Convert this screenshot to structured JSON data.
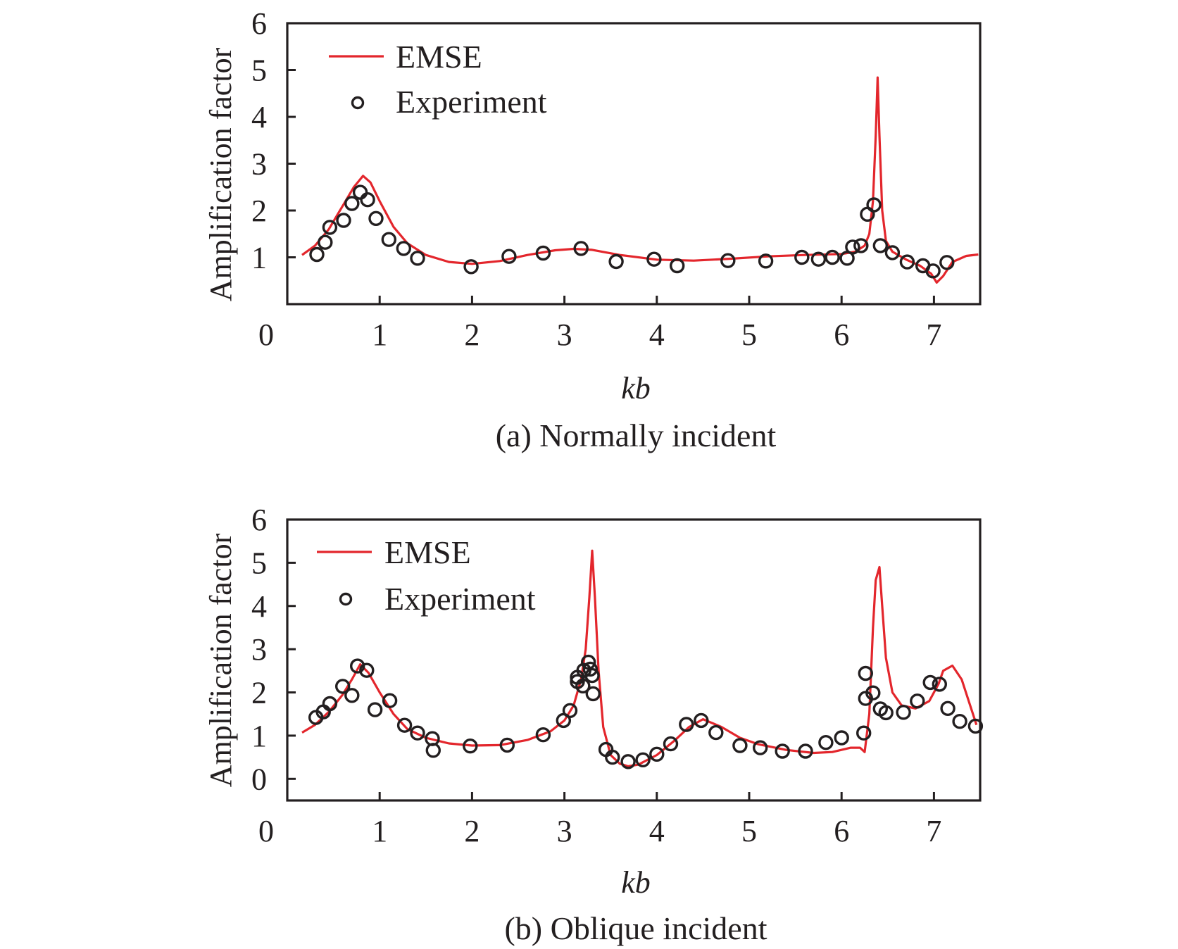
{
  "chart_data": [
    {
      "type": "line",
      "panel": "a",
      "caption": "(a) Normally incident",
      "title": "",
      "xlabel": "kb",
      "ylabel": "Amplification factor",
      "xlim": [
        0,
        7.5
      ],
      "ylim": [
        0,
        6
      ],
      "xticks": [
        0,
        1,
        2,
        3,
        4,
        5,
        6,
        7
      ],
      "yticks": [
        1,
        2,
        3,
        4,
        5,
        6
      ],
      "x_tick_labels": [
        "0",
        "1",
        "2",
        "3",
        "4",
        "5",
        "6",
        "7"
      ],
      "y_tick_labels": [
        "1",
        "2",
        "3",
        "4",
        "5",
        "6"
      ],
      "grid": false,
      "legend": {
        "position": "top-left",
        "entries": [
          "EMSE",
          "Experiment"
        ]
      },
      "series": [
        {
          "name": "EMSE",
          "style": "line",
          "color": "#e3262c",
          "x": [
            0.16,
            0.3,
            0.45,
            0.6,
            0.72,
            0.82,
            0.9,
            1.0,
            1.15,
            1.3,
            1.5,
            1.75,
            2.0,
            2.3,
            2.6,
            2.9,
            3.1,
            3.3,
            3.6,
            4.0,
            4.4,
            4.8,
            5.2,
            5.6,
            6.0,
            6.15,
            6.25,
            6.3,
            6.34,
            6.37,
            6.39,
            6.41,
            6.44,
            6.48,
            6.55,
            6.7,
            6.85,
            6.97,
            7.03,
            7.1,
            7.2,
            7.35,
            7.48
          ],
          "y": [
            1.05,
            1.25,
            1.6,
            2.1,
            2.5,
            2.74,
            2.6,
            2.2,
            1.65,
            1.3,
            1.05,
            0.9,
            0.86,
            0.92,
            1.05,
            1.15,
            1.18,
            1.16,
            1.05,
            0.95,
            0.93,
            0.97,
            1.02,
            1.05,
            1.07,
            1.12,
            1.25,
            1.5,
            2.2,
            3.6,
            4.84,
            3.6,
            2.0,
            1.35,
            1.12,
            0.95,
            0.82,
            0.65,
            0.46,
            0.6,
            0.9,
            1.03,
            1.06
          ]
        },
        {
          "name": "Experiment",
          "style": "scatter",
          "marker": "open-circle",
          "x": [
            0.32,
            0.41,
            0.46,
            0.61,
            0.7,
            0.79,
            0.87,
            0.96,
            1.1,
            1.26,
            1.41,
            1.99,
            2.4,
            2.77,
            3.18,
            3.56,
            3.97,
            4.22,
            4.77,
            5.18,
            5.57,
            5.75,
            5.9,
            6.06,
            6.12,
            6.21,
            6.28,
            6.35,
            6.42,
            6.55,
            6.71,
            6.88,
            6.99,
            7.14
          ],
          "y": [
            1.06,
            1.32,
            1.64,
            1.79,
            2.15,
            2.39,
            2.23,
            1.83,
            1.38,
            1.19,
            0.98,
            0.8,
            1.02,
            1.09,
            1.19,
            0.91,
            0.96,
            0.82,
            0.93,
            0.92,
            1.0,
            0.96,
            1.0,
            0.98,
            1.22,
            1.25,
            1.92,
            2.12,
            1.25,
            1.1,
            0.9,
            0.82,
            0.71,
            0.89
          ]
        }
      ]
    },
    {
      "type": "line",
      "panel": "b",
      "caption": "(b) Oblique incident",
      "title": "",
      "xlabel": "kb",
      "ylabel": "Amplification factor",
      "xlim": [
        0,
        7.5
      ],
      "ylim": [
        -0.5,
        6
      ],
      "xticks": [
        0,
        1,
        2,
        3,
        4,
        5,
        6,
        7
      ],
      "yticks": [
        0,
        1,
        2,
        3,
        4,
        5,
        6
      ],
      "x_tick_labels": [
        "0",
        "1",
        "2",
        "3",
        "4",
        "5",
        "6",
        "7"
      ],
      "y_tick_labels": [
        "0",
        "1",
        "2",
        "3",
        "4",
        "5",
        "6"
      ],
      "grid": false,
      "legend": {
        "position": "top-left",
        "entries": [
          "EMSE",
          "Experiment"
        ]
      },
      "series": [
        {
          "name": "EMSE",
          "style": "line",
          "color": "#e3262c",
          "x": [
            0.16,
            0.3,
            0.45,
            0.6,
            0.7,
            0.79,
            0.88,
            1.0,
            1.15,
            1.3,
            1.5,
            1.75,
            2.0,
            2.3,
            2.6,
            2.85,
            3.0,
            3.1,
            3.18,
            3.23,
            3.27,
            3.3,
            3.33,
            3.37,
            3.42,
            3.5,
            3.6,
            3.69,
            3.8,
            4.0,
            4.2,
            4.35,
            4.5,
            4.7,
            4.9,
            5.1,
            5.4,
            5.7,
            5.9,
            6.1,
            6.2,
            6.25,
            6.3,
            6.34,
            6.37,
            6.41,
            6.44,
            6.48,
            6.55,
            6.65,
            6.8,
            6.95,
            7.05,
            7.1,
            7.2,
            7.3,
            7.46
          ],
          "y": [
            1.07,
            1.25,
            1.55,
            1.95,
            2.3,
            2.65,
            2.45,
            2.0,
            1.5,
            1.15,
            0.95,
            0.82,
            0.77,
            0.78,
            0.9,
            1.1,
            1.35,
            1.7,
            2.3,
            3.0,
            4.2,
            5.28,
            4.2,
            2.5,
            1.2,
            0.55,
            0.35,
            0.29,
            0.33,
            0.55,
            0.9,
            1.2,
            1.38,
            1.2,
            0.95,
            0.8,
            0.67,
            0.6,
            0.62,
            0.72,
            0.72,
            0.62,
            1.5,
            3.5,
            4.6,
            4.9,
            4.0,
            2.8,
            2.0,
            1.7,
            1.63,
            1.8,
            2.2,
            2.5,
            2.62,
            2.3,
            1.25
          ]
        },
        {
          "name": "Experiment",
          "style": "scatter",
          "marker": "open-circle",
          "x": [
            0.31,
            0.39,
            0.46,
            0.6,
            0.7,
            0.76,
            0.86,
            0.95,
            1.11,
            1.27,
            1.41,
            1.57,
            1.58,
            1.98,
            2.38,
            2.77,
            2.99,
            3.06,
            3.14,
            3.14,
            3.2,
            3.21,
            3.26,
            3.28,
            3.3,
            3.31,
            3.45,
            3.52,
            3.69,
            3.85,
            4.0,
            4.15,
            4.32,
            4.48,
            4.64,
            4.9,
            5.12,
            5.36,
            5.61,
            5.83,
            6.0,
            6.24,
            6.26,
            6.26,
            6.34,
            6.42,
            6.48,
            6.67,
            6.82,
            6.96,
            7.06,
            7.15,
            7.28,
            7.45
          ],
          "y": [
            1.42,
            1.55,
            1.74,
            2.14,
            1.93,
            2.61,
            2.51,
            1.6,
            1.81,
            1.24,
            1.06,
            0.93,
            0.66,
            0.76,
            0.78,
            1.02,
            1.35,
            1.58,
            2.35,
            2.25,
            2.15,
            2.51,
            2.7,
            2.54,
            2.39,
            1.97,
            0.68,
            0.5,
            0.4,
            0.44,
            0.57,
            0.81,
            1.26,
            1.35,
            1.07,
            0.77,
            0.72,
            0.64,
            0.64,
            0.84,
            0.95,
            1.06,
            2.44,
            1.86,
            1.99,
            1.62,
            1.53,
            1.54,
            1.8,
            2.23,
            2.19,
            1.63,
            1.33,
            1.22
          ]
        }
      ]
    }
  ]
}
